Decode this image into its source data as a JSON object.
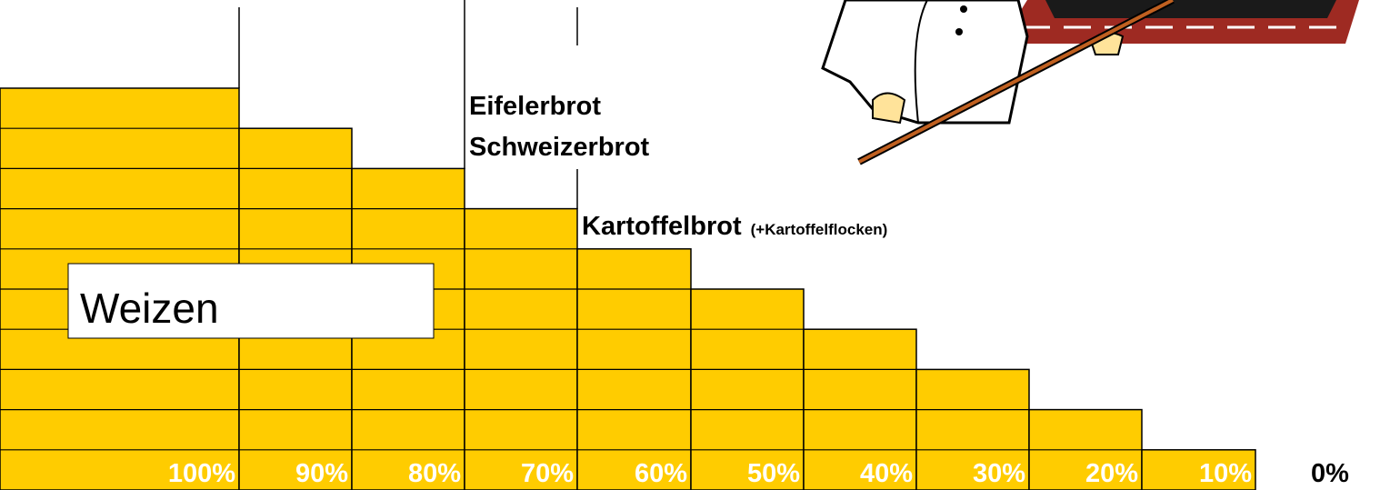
{
  "chart_data": {
    "type": "bar",
    "categories": [
      "100%",
      "90%",
      "80%",
      "70%",
      "60%",
      "50%",
      "40%",
      "30%",
      "20%",
      "10%",
      "0%"
    ],
    "values": [
      100,
      90,
      80,
      70,
      60,
      50,
      40,
      30,
      20,
      10,
      0
    ],
    "color": "#ffcc00",
    "ylim": [
      0,
      100
    ],
    "annotations": [
      "Eifelerbrot",
      "Schweizerbrot",
      "Kartoffelbrot",
      "(+Kartoffelflocken)",
      "Weizen"
    ]
  }
}
